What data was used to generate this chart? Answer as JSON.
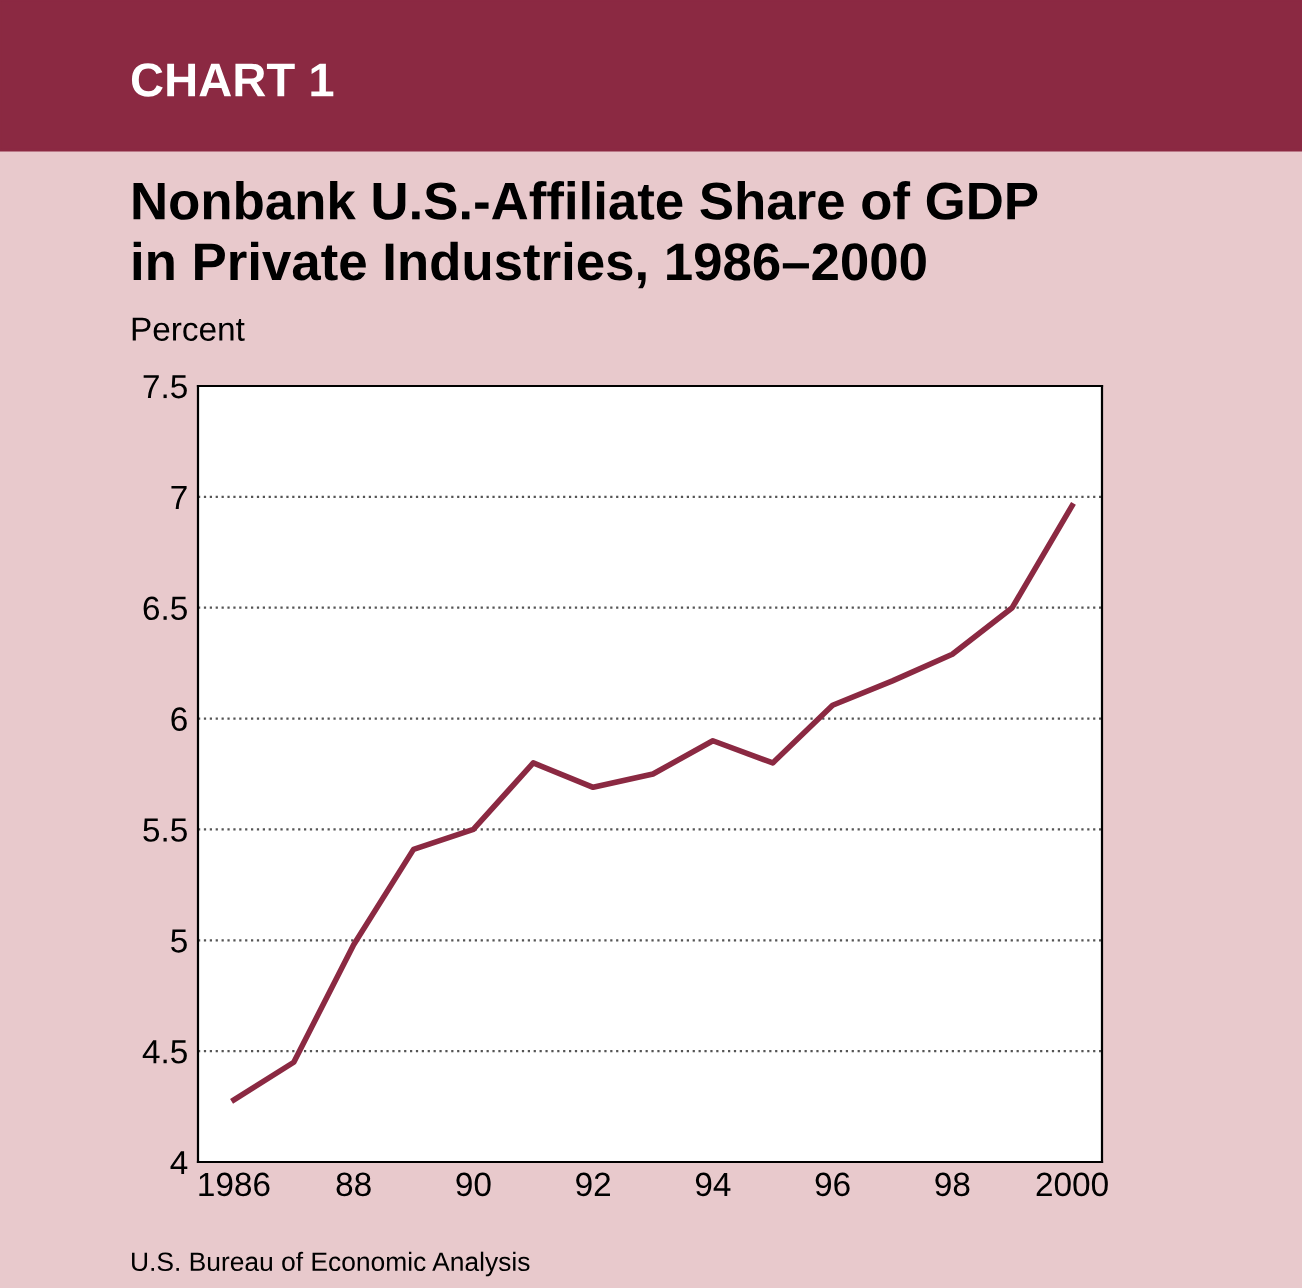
{
  "chart_data": {
    "type": "line",
    "title": "Nonbank U.S.-Affiliate Share of GDP\nin Private Industries, 1986–2000",
    "ylabel": "Percent",
    "annotations": [
      "CHART 1",
      "U.S. Bureau of Economic Analysis"
    ],
    "x": [
      1986,
      1987,
      1988,
      1989,
      1990,
      1991,
      1992,
      1993,
      1994,
      1995,
      1996,
      1997,
      1998,
      1999,
      2000
    ],
    "series": [
      {
        "color": "#8b2942",
        "values": [
          4.28,
          4.45,
          4.98,
          5.41,
          5.5,
          5.8,
          5.69,
          5.75,
          5.9,
          5.8,
          6.06,
          6.17,
          6.29,
          6.5,
          6.96
        ]
      }
    ],
    "xlim": [
      1985.4,
      2000.5
    ],
    "xticks": [
      1986,
      {
        "value": 1988,
        "label": "88"
      },
      {
        "value": 1990,
        "label": "90"
      },
      {
        "value": 1992,
        "label": "92"
      },
      {
        "value": 1994,
        "label": "94"
      },
      {
        "value": 1996,
        "label": "96"
      },
      {
        "value": 1998,
        "label": "98"
      },
      2000
    ],
    "ylim": [
      4,
      7.5
    ],
    "yticks": [
      4,
      4.5,
      5,
      5.5,
      6,
      6.5,
      7,
      7.5
    ],
    "grid": "y",
    "legend": false,
    "marker": "none",
    "line_style": "solid"
  }
}
